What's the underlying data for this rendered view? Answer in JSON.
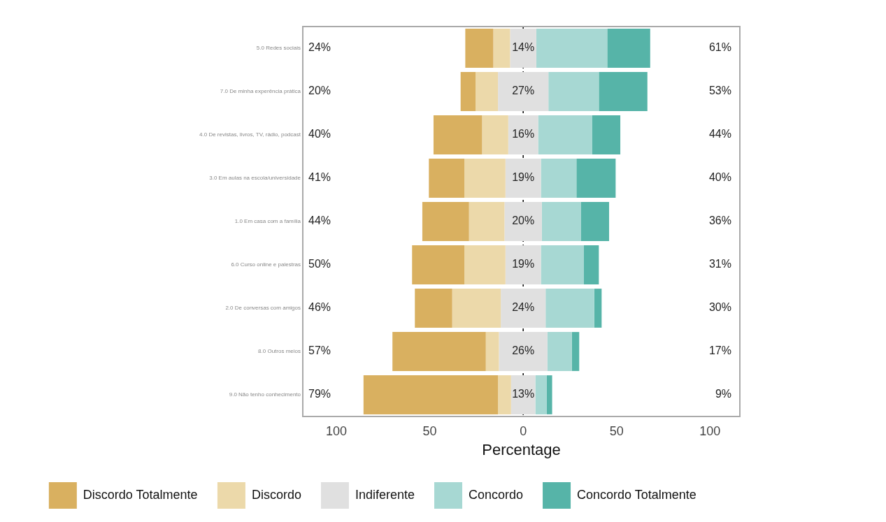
{
  "chart_data": {
    "type": "bar",
    "orientation": "horizontal",
    "xlabel": "Percentage",
    "categories": [
      "5.0 Redes sociais",
      "7.0 De minha experência prática",
      "4.0 De revistas, livros, TV, rádio, podcast",
      "3.0 Em aulas na escola/universidade",
      "1.0 Em casa com a família",
      "6.0 Curso online e palestras",
      "2.0 De conversas com amigos",
      "8.0 Outros meios",
      "9.0 Não tenho conhecimento"
    ],
    "series": [
      {
        "name": "Discordo Totalmente",
        "color": "#d9b060",
        "values": [
          15,
          8,
          26,
          19,
          25,
          28,
          20,
          50,
          72
        ],
        "base": [
          -31,
          -33.5,
          -48,
          -50.5,
          -54,
          -59.5,
          -58,
          -70,
          -85.5
        ]
      },
      {
        "name": "Discordo",
        "color": "#ecd9aa",
        "values": [
          9,
          12,
          14,
          22,
          19,
          22,
          26,
          7,
          7
        ],
        "base": [
          -16,
          -25.5,
          -22,
          -31.5,
          -29,
          -31.5,
          -38,
          -20,
          -13.5
        ]
      },
      {
        "name": "Indiferente",
        "color": "#e0e0e0",
        "values": [
          14,
          27,
          16,
          19,
          20,
          19,
          24,
          26,
          13
        ],
        "base": [
          -7,
          -13.5,
          -8,
          -9.5,
          -10,
          -9.5,
          -12,
          -13,
          -6.5
        ],
        "value_labels": [
          "14%",
          "27%",
          "16%",
          "19%",
          "20%",
          "19%",
          "24%",
          "26%",
          "13%"
        ]
      },
      {
        "name": "Concordo",
        "color": "#a7d8d3",
        "values": [
          38,
          27,
          29,
          19,
          21,
          23,
          26,
          13,
          6
        ],
        "base": [
          7,
          13.5,
          8,
          9.5,
          10,
          9.5,
          12,
          13,
          6.5
        ]
      },
      {
        "name": "Concordo Totalmente",
        "color": "#56b4a8",
        "values": [
          23,
          26,
          15,
          21,
          15,
          8,
          4,
          4,
          3
        ],
        "base": [
          45,
          40.5,
          37,
          28.5,
          31,
          32.5,
          38,
          26,
          12.5
        ]
      }
    ],
    "xlim": [
      -118,
      116
    ],
    "xticks": [
      {
        "value": -100,
        "label": "100"
      },
      {
        "value": -50,
        "label": "50"
      },
      0,
      50,
      100
    ],
    "ref_lines": [
      {
        "axis": "x",
        "value": 0,
        "color": "#000000",
        "line_style": "dashed"
      }
    ],
    "annotations": [
      "24%",
      "20%",
      "40%",
      "41%",
      "44%",
      "50%",
      "46%",
      "57%",
      "79%",
      "61%",
      "53%",
      "44%",
      "40%",
      "36%",
      "31%",
      "30%",
      "17%",
      "9%"
    ],
    "grid": false,
    "legend": "bottom"
  }
}
